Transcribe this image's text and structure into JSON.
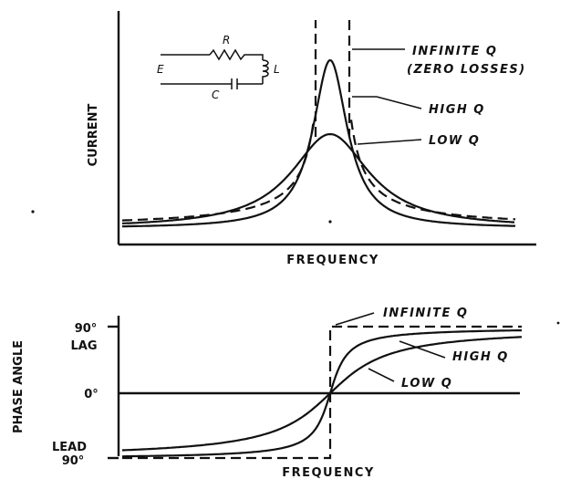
{
  "top_graph": {
    "y_axis_label": "CURRENT",
    "x_axis_label": "FREQUENCY",
    "curves": [
      {
        "label_line1": "INFINITE Q",
        "label_line2": "(ZERO LOSSES)",
        "style": "dashed"
      },
      {
        "label_line1": "HIGH Q",
        "style": "solid"
      },
      {
        "label_line1": "LOW Q",
        "style": "solid"
      }
    ],
    "circuit": {
      "resistor": "R",
      "inductor": "L",
      "capacitor": "C",
      "source": "E"
    }
  },
  "bottom_graph": {
    "y_axis_label": "PHASE ANGLE",
    "x_axis_label": "FREQUENCY",
    "tick_labels": {
      "top_value": "90°",
      "top_word": "LAG",
      "zero": "0°",
      "bottom_word": "LEAD",
      "bottom_value": "90°"
    },
    "curves": [
      {
        "label": "INFINITE Q",
        "style": "dashed"
      },
      {
        "label": "HIGH Q",
        "style": "solid"
      },
      {
        "label": "LOW Q",
        "style": "solid"
      }
    ]
  },
  "colors": {
    "ink": "#111111",
    "paper": "#ffffff"
  }
}
